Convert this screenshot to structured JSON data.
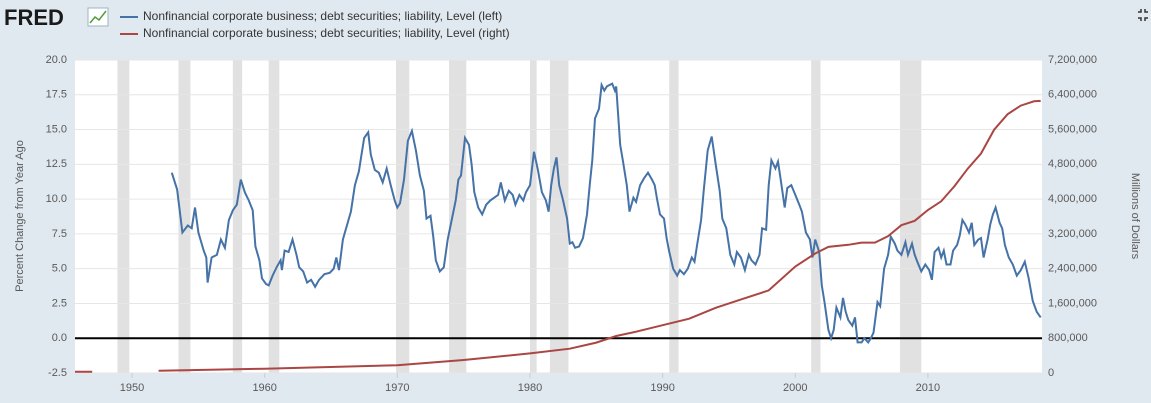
{
  "chart_data": {
    "type": "line",
    "logo": "FRED",
    "ylabel": "Percent Change from Year Ago",
    "y2label": "Millions of Dollars",
    "xlim": [
      1945.7,
      2018.6
    ],
    "xticks": [
      1950,
      1960,
      1970,
      1980,
      1990,
      2000,
      2010
    ],
    "ylim": [
      -2.5,
      20
    ],
    "yticks": [
      -2.5,
      {
        "value": 0,
        "label": "0.0"
      },
      2.5,
      {
        "value": 5,
        "label": "5.0"
      },
      7.5,
      {
        "value": 10,
        "label": "10.0"
      },
      12.5,
      {
        "value": 15,
        "label": "15.0"
      },
      17.5,
      {
        "value": 20,
        "label": "20.0"
      }
    ],
    "y2lim": [
      0,
      7200000
    ],
    "y2ticks": [
      0,
      {
        "value": 800000,
        "label": "800,000"
      },
      {
        "value": 1600000,
        "label": "1,600,000"
      },
      {
        "value": 2400000,
        "label": "2,400,000"
      },
      {
        "value": 3200000,
        "label": "3,200,000"
      },
      {
        "value": 4000000,
        "label": "4,000,000"
      },
      {
        "value": 4800000,
        "label": "4,800,000"
      },
      {
        "value": 5600000,
        "label": "5,600,000"
      },
      {
        "value": 6400000,
        "label": "6,400,000"
      },
      {
        "value": 7200000,
        "label": "7,200,000"
      }
    ],
    "grid": true,
    "reference_line": 0,
    "recessions": [
      [
        1948.9,
        1949.8
      ],
      [
        1953.5,
        1954.4
      ],
      [
        1957.6,
        1958.3
      ],
      [
        1960.3,
        1961.1
      ],
      [
        1969.9,
        1970.9
      ],
      [
        1973.9,
        1975.2
      ],
      [
        1980.0,
        1980.5
      ],
      [
        1981.5,
        1982.9
      ],
      [
        1990.5,
        1991.2
      ],
      [
        2001.2,
        2001.9
      ],
      [
        2007.9,
        2009.5
      ]
    ],
    "series": [
      {
        "name": "Nonfinancial corporate business; debt securities; liability, Level (left)",
        "color": "#4572a7",
        "axis": "y",
        "x": [
          1953.0,
          1953.4,
          1953.8,
          1954.2,
          1954.5,
          1954.75,
          1955.0,
          1955.4,
          1955.6,
          1955.7,
          1956.0,
          1956.4,
          1956.7,
          1957.0,
          1957.3,
          1957.6,
          1957.9,
          1958.2,
          1958.5,
          1958.8,
          1959.1,
          1959.3,
          1959.6,
          1959.8,
          1960.1,
          1960.3,
          1960.6,
          1960.9,
          1961.2,
          1961.3,
          1961.5,
          1961.8,
          1962.1,
          1962.4,
          1962.6,
          1962.9,
          1963.2,
          1963.5,
          1963.8,
          1964.1,
          1964.5,
          1964.9,
          1965.2,
          1965.4,
          1965.6,
          1965.9,
          1966.2,
          1966.5,
          1966.8,
          1967.1,
          1967.3,
          1967.5,
          1967.8,
          1968.0,
          1968.3,
          1968.6,
          1968.9,
          1969.2,
          1969.5,
          1969.8,
          1970.0,
          1970.2,
          1970.5,
          1970.8,
          1971.1,
          1971.4,
          1971.7,
          1972.0,
          1972.2,
          1972.5,
          1972.7,
          1972.9,
          1973.2,
          1973.5,
          1973.8,
          1974.1,
          1974.4,
          1974.6,
          1974.8,
          1975.1,
          1975.4,
          1975.6,
          1975.8,
          1976.1,
          1976.4,
          1976.7,
          1977.0,
          1977.3,
          1977.6,
          1977.8,
          1978.1,
          1978.4,
          1978.7,
          1978.9,
          1979.2,
          1979.5,
          1979.7,
          1980.0,
          1980.3,
          1980.6,
          1980.9,
          1981.2,
          1981.4,
          1981.6,
          1981.8,
          1982.0,
          1982.2,
          1982.5,
          1982.8,
          1983.0,
          1983.2,
          1983.4,
          1983.7,
          1984.0,
          1984.3,
          1984.5,
          1984.7,
          1984.9,
          1985.2,
          1985.4,
          1985.6,
          1985.8,
          1986.2,
          1986.4,
          1986.5,
          1986.8,
          1987.0,
          1987.3,
          1987.5,
          1987.8,
          1988.0,
          1988.3,
          1988.6,
          1988.9,
          1989.2,
          1989.4,
          1989.6,
          1989.8,
          1990.1,
          1990.3,
          1990.5,
          1990.8,
          1991.1,
          1991.3,
          1991.6,
          1991.9,
          1992.2,
          1992.4,
          1992.6,
          1992.9,
          1993.1,
          1993.4,
          1993.7,
          1994.0,
          1994.3,
          1994.5,
          1994.8,
          1995.1,
          1995.4,
          1995.6,
          1995.9,
          1996.2,
          1996.5,
          1996.7,
          1997.0,
          1997.3,
          1997.5,
          1997.8,
          1998.0,
          1998.2,
          1998.5,
          1998.7,
          1998.9,
          1999.2,
          1999.4,
          1999.7,
          2000.0,
          2000.3,
          2000.5,
          2000.8,
          2001.1,
          2001.3,
          2001.5,
          2001.8,
          2002.0,
          2002.2,
          2002.5,
          2002.7,
          2002.9,
          2003.1,
          2003.4,
          2003.6,
          2003.8,
          2004.0,
          2004.3,
          2004.5,
          2004.7,
          2005.0,
          2005.2,
          2005.5,
          2005.7,
          2005.9,
          2006.2,
          2006.4,
          2006.7,
          2007.0,
          2007.2,
          2007.5,
          2007.7,
          2008.0,
          2008.3,
          2008.5,
          2008.8,
          2009.0,
          2009.2,
          2009.5,
          2009.8,
          2010.1,
          2010.3,
          2010.5,
          2010.8,
          2011.0,
          2011.2,
          2011.4,
          2011.7,
          2011.9,
          2012.2,
          2012.4,
          2012.6,
          2012.8,
          2013.1,
          2013.3,
          2013.5,
          2013.8,
          2014.0,
          2014.2,
          2014.5,
          2014.7,
          2014.9,
          2015.1,
          2015.4,
          2015.6,
          2015.8,
          2016.1,
          2016.4,
          2016.7,
          2017.0,
          2017.3,
          2017.6,
          2017.9,
          2018.2,
          2018.5
        ],
        "values": [
          11.9,
          10.7,
          7.6,
          8.1,
          7.9,
          9.4,
          7.6,
          6.3,
          5.8,
          4.0,
          5.8,
          6.0,
          7.1,
          6.5,
          8.5,
          9.2,
          9.6,
          11.4,
          10.5,
          9.9,
          9.2,
          6.6,
          5.6,
          4.3,
          3.9,
          3.8,
          4.5,
          5.1,
          5.6,
          4.9,
          6.3,
          6.2,
          7.1,
          6.0,
          5.1,
          4.8,
          4.0,
          4.2,
          3.7,
          4.2,
          4.6,
          4.7,
          5.0,
          5.8,
          4.9,
          7.1,
          8.1,
          9.1,
          11.0,
          12.0,
          13.2,
          14.4,
          14.8,
          13.2,
          12.1,
          11.9,
          11.2,
          12.2,
          11.0,
          9.9,
          9.4,
          9.7,
          11.4,
          14.2,
          14.9,
          13.5,
          11.7,
          10.6,
          8.6,
          8.8,
          7.4,
          5.6,
          4.8,
          5.1,
          7.1,
          8.5,
          9.9,
          11.4,
          11.7,
          14.4,
          13.9,
          12.5,
          10.5,
          9.4,
          8.9,
          9.6,
          9.9,
          10.1,
          10.3,
          11.2,
          9.9,
          10.6,
          10.3,
          9.6,
          10.3,
          9.9,
          10.5,
          11.0,
          13.4,
          12.1,
          10.5,
          9.9,
          9.1,
          11.0,
          12.2,
          13.0,
          11.0,
          9.9,
          8.6,
          6.8,
          6.9,
          6.5,
          6.6,
          7.2,
          8.9,
          11.0,
          12.8,
          15.8,
          16.5,
          18.2,
          17.8,
          18.1,
          18.3,
          17.8,
          18.1,
          13.9,
          12.8,
          11.0,
          9.1,
          10.1,
          9.8,
          11.0,
          11.5,
          11.9,
          11.4,
          11.0,
          9.9,
          8.9,
          8.6,
          7.2,
          6.2,
          5.0,
          4.5,
          4.9,
          4.6,
          5.0,
          5.8,
          5.5,
          6.7,
          8.5,
          10.6,
          13.5,
          14.5,
          12.5,
          10.6,
          8.6,
          7.9,
          6.0,
          5.3,
          6.2,
          5.8,
          4.9,
          6.0,
          5.6,
          5.3,
          6.0,
          7.9,
          7.8,
          11.0,
          12.8,
          12.2,
          12.7,
          11.4,
          9.4,
          10.8,
          11.0,
          10.3,
          9.6,
          9.1,
          7.6,
          7.1,
          5.8,
          7.1,
          6.2,
          3.8,
          2.6,
          0.6,
          0.0,
          0.6,
          2.2,
          1.5,
          2.9,
          1.9,
          1.3,
          0.9,
          1.5,
          -0.3,
          -0.3,
          0.0,
          -0.3,
          0.0,
          0.4,
          2.6,
          2.3,
          5.0,
          6.0,
          7.3,
          6.8,
          6.3,
          6.0,
          6.9,
          6.0,
          6.8,
          6.0,
          5.5,
          4.8,
          5.3,
          4.9,
          4.2,
          6.2,
          6.5,
          5.8,
          6.3,
          5.3,
          5.3,
          6.3,
          6.7,
          7.4,
          8.5,
          8.2,
          7.6,
          8.3,
          6.7,
          7.1,
          7.2,
          5.8,
          7.1,
          8.2,
          8.9,
          9.4,
          8.3,
          7.9,
          6.7,
          5.8,
          5.3,
          4.5,
          4.9,
          5.5,
          4.3,
          2.7,
          1.9,
          1.5
        ]
      },
      {
        "name": "Nonfinancial corporate business; debt securities; liability, Level (right)",
        "color": "#aa4643",
        "axis": "y2",
        "x": [
          1945.7,
          1947.0,
          1949.5,
          1952.0,
          1960.0,
          1970.0,
          1975.0,
          1980.0,
          1983.0,
          1985.0,
          1986.5,
          1988.0,
          1990.0,
          1992.0,
          1994.0,
          1996.0,
          1998.0,
          2000.0,
          2001.5,
          2002.5,
          2004.0,
          2005.0,
          2006.0,
          2007.0,
          2008.0,
          2009.0,
          2010.0,
          2011.0,
          2012.0,
          2013.0,
          2014.0,
          2015.0,
          2016.0,
          2017.0,
          2018.0,
          2018.5
        ],
        "values": [
          30000,
          30000,
          null,
          50000,
          100000,
          180000,
          300000,
          450000,
          560000,
          700000,
          850000,
          950000,
          1100000,
          1250000,
          1500000,
          1700000,
          1900000,
          2450000,
          2750000,
          2900000,
          2950000,
          3000000,
          3000000,
          3150000,
          3400000,
          3500000,
          3750000,
          3950000,
          4300000,
          4700000,
          5050000,
          5600000,
          5950000,
          6150000,
          6250000,
          6260000
        ]
      }
    ]
  }
}
